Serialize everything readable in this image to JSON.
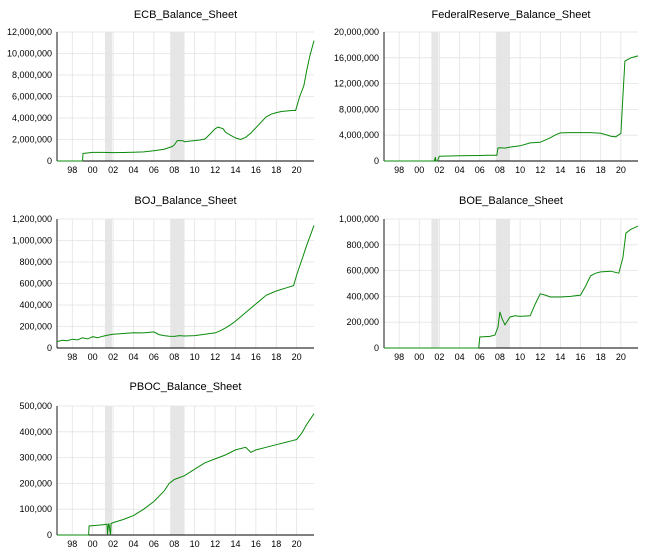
{
  "chart_data": [
    {
      "type": "line",
      "title": "ECB_Balance_Sheet",
      "xlim": [
        1996.5,
        2021.7
      ],
      "ylim": [
        0,
        12000000
      ],
      "yticks": [
        0,
        2000000,
        4000000,
        6000000,
        8000000,
        10000000,
        12000000
      ],
      "ytick_labels": [
        "0",
        "2,000,000",
        "4,000,000",
        "6,000,000",
        "8,000,000",
        "10,000,000",
        "12,000,000"
      ],
      "xticks": [
        1998,
        2000,
        2002,
        2004,
        2006,
        2008,
        2010,
        2012,
        2014,
        2016,
        2018,
        2020
      ],
      "xtick_labels": [
        "98",
        "00",
        "02",
        "04",
        "06",
        "08",
        "10",
        "12",
        "14",
        "16",
        "18",
        "20"
      ],
      "shaded_periods": [
        [
          2001.2,
          2001.9
        ],
        [
          2007.6,
          2009.0
        ]
      ],
      "series_color": "#0a8a0a",
      "grid": true,
      "x": [
        1996.5,
        1999.0,
        1999.05,
        2000,
        2001,
        2002,
        2003,
        2004,
        2005,
        2006,
        2007,
        2007.8,
        2008.0,
        2008.3,
        2008.8,
        2009,
        2009.5,
        2010,
        2010.5,
        2011,
        2011.5,
        2012.0,
        2012.3,
        2012.8,
        2013,
        2013.5,
        2014,
        2014.5,
        2015,
        2015.5,
        2016,
        2016.5,
        2017,
        2017.5,
        2018,
        2018.5,
        2019,
        2019.5,
        2019.9,
        2020.3,
        2020.7,
        2021,
        2021.3,
        2021.7
      ],
      "y": [
        0,
        0,
        700000,
        800000,
        800000,
        780000,
        790000,
        820000,
        850000,
        950000,
        1100000,
        1350000,
        1500000,
        1900000,
        1900000,
        1800000,
        1850000,
        1900000,
        1950000,
        2050000,
        2500000,
        3000000,
        3150000,
        3000000,
        2700000,
        2400000,
        2150000,
        2000000,
        2200000,
        2600000,
        3100000,
        3600000,
        4100000,
        4350000,
        4500000,
        4600000,
        4650000,
        4700000,
        4700000,
        6000000,
        7000000,
        8500000,
        9800000,
        11200000
      ]
    },
    {
      "type": "line",
      "title": "FederalReserve_Balance_Sheet",
      "xlim": [
        1996.5,
        2021.7
      ],
      "ylim": [
        0,
        20000000
      ],
      "yticks": [
        0,
        4000000,
        8000000,
        12000000,
        16000000,
        20000000
      ],
      "ytick_labels": [
        "0",
        "4,000,000",
        "8,000,000",
        "12,000,000",
        "16,000,000",
        "20,000,000"
      ],
      "xticks": [
        1998,
        2000,
        2002,
        2004,
        2006,
        2008,
        2010,
        2012,
        2014,
        2016,
        2018,
        2020
      ],
      "xtick_labels": [
        "98",
        "00",
        "02",
        "04",
        "06",
        "08",
        "10",
        "12",
        "14",
        "16",
        "18",
        "20"
      ],
      "shaded_periods": [
        [
          2001.2,
          2001.9
        ],
        [
          2007.6,
          2009.0
        ]
      ],
      "series_color": "#0a8a0a",
      "grid": true,
      "x": [
        1996.5,
        2001.5,
        2001.6,
        2001.65,
        2001.8,
        2002,
        2003,
        2004,
        2005,
        2006,
        2007,
        2007.7,
        2007.8,
        2008.0,
        2008.5,
        2009,
        2010,
        2011,
        2012,
        2013,
        2013.5,
        2014,
        2015,
        2016,
        2017,
        2018,
        2018.5,
        2019.0,
        2019.5,
        2020.0,
        2020.2,
        2020.4,
        2021.0,
        2021.7
      ],
      "y": [
        0,
        0,
        600000,
        0,
        0,
        750000,
        780000,
        800000,
        830000,
        860000,
        880000,
        900000,
        2000000,
        2050000,
        2000000,
        2150000,
        2350000,
        2800000,
        2900000,
        3600000,
        4050000,
        4350000,
        4400000,
        4400000,
        4400000,
        4300000,
        4100000,
        3850000,
        3750000,
        4300000,
        10000000,
        15500000,
        16000000,
        16300000
      ]
    },
    {
      "type": "line",
      "title": "BOJ_Balance_Sheet",
      "xlim": [
        1996.5,
        2021.7
      ],
      "ylim": [
        0,
        1200000
      ],
      "yticks": [
        0,
        200000,
        400000,
        600000,
        800000,
        1000000,
        1200000
      ],
      "ytick_labels": [
        "0",
        "200,000",
        "400,000",
        "600,000",
        "800,000",
        "1,000,000",
        "1,200,000"
      ],
      "xticks": [
        1998,
        2000,
        2002,
        2004,
        2006,
        2008,
        2010,
        2012,
        2014,
        2016,
        2018,
        2020
      ],
      "xtick_labels": [
        "98",
        "00",
        "02",
        "04",
        "06",
        "08",
        "10",
        "12",
        "14",
        "16",
        "18",
        "20"
      ],
      "shaded_periods": [
        [
          2001.2,
          2001.9
        ],
        [
          2007.6,
          2009.0
        ]
      ],
      "series_color": "#0a8a0a",
      "grid": true,
      "x": [
        1996.5,
        1997,
        1997.5,
        1998,
        1998.5,
        1999,
        1999.5,
        2000,
        2000.5,
        2001,
        2001.5,
        2002,
        2003,
        2004,
        2005,
        2006,
        2006.5,
        2007,
        2007.5,
        2008,
        2008.5,
        2009,
        2010,
        2011,
        2011.5,
        2012,
        2012.5,
        2013,
        2013.5,
        2014,
        2015,
        2016,
        2016.5,
        2017,
        2018,
        2019,
        2019.7,
        2020,
        2020.5,
        2021,
        2021.7
      ],
      "y": [
        60000,
        72000,
        68000,
        82000,
        75000,
        95000,
        85000,
        105000,
        96000,
        110000,
        120000,
        128000,
        135000,
        142000,
        140000,
        150000,
        125000,
        115000,
        110000,
        108000,
        115000,
        112000,
        115000,
        128000,
        135000,
        140000,
        160000,
        185000,
        215000,
        250000,
        330000,
        410000,
        450000,
        490000,
        530000,
        560000,
        580000,
        680000,
        820000,
        960000,
        1140000
      ]
    },
    {
      "type": "line",
      "title": "BOE_Balance_Sheet",
      "xlim": [
        1996.5,
        2021.7
      ],
      "ylim": [
        0,
        1000000
      ],
      "yticks": [
        0,
        200000,
        400000,
        600000,
        800000,
        1000000
      ],
      "ytick_labels": [
        "0",
        "200,000",
        "400,000",
        "600,000",
        "800,000",
        "1,000,000"
      ],
      "xticks": [
        1998,
        2000,
        2002,
        2004,
        2006,
        2008,
        2010,
        2012,
        2014,
        2016,
        2018,
        2020
      ],
      "xtick_labels": [
        "98",
        "00",
        "02",
        "04",
        "06",
        "08",
        "10",
        "12",
        "14",
        "16",
        "18",
        "20"
      ],
      "shaded_periods": [
        [
          2001.2,
          2001.9
        ],
        [
          2007.6,
          2009.0
        ]
      ],
      "series_color": "#0a8a0a",
      "grid": true,
      "x": [
        1996.5,
        2005.9,
        2006.0,
        2007.0,
        2007.5,
        2007.8,
        2008.0,
        2008.2,
        2008.5,
        2009,
        2009.5,
        2010,
        2011,
        2011.5,
        2012,
        2012.5,
        2013,
        2014,
        2015,
        2016,
        2016.5,
        2017,
        2017.5,
        2018,
        2019,
        2019.8,
        2020.2,
        2020.5,
        2021.0,
        2021.7
      ],
      "y": [
        0,
        0,
        85000,
        90000,
        100000,
        160000,
        280000,
        230000,
        180000,
        240000,
        250000,
        245000,
        250000,
        340000,
        420000,
        410000,
        395000,
        395000,
        400000,
        410000,
        480000,
        560000,
        580000,
        590000,
        595000,
        580000,
        700000,
        890000,
        920000,
        945000
      ]
    },
    {
      "type": "line",
      "title": "PBOC_Balance_Sheet",
      "xlim": [
        1996.5,
        2021.7
      ],
      "ylim": [
        0,
        500000
      ],
      "yticks": [
        0,
        100000,
        200000,
        300000,
        400000,
        500000
      ],
      "ytick_labels": [
        "0",
        "100,000",
        "200,000",
        "300,000",
        "400,000",
        "500,000"
      ],
      "xticks": [
        1998,
        2000,
        2002,
        2004,
        2006,
        2008,
        2010,
        2012,
        2014,
        2016,
        2018,
        2020
      ],
      "xtick_labels": [
        "98",
        "00",
        "02",
        "04",
        "06",
        "08",
        "10",
        "12",
        "14",
        "16",
        "18",
        "20"
      ],
      "shaded_periods": [
        [
          2001.2,
          2001.9
        ],
        [
          2007.6,
          2009.0
        ]
      ],
      "series_color": "#0a8a0a",
      "grid": true,
      "x": [
        1996.5,
        1999.6,
        1999.65,
        2000.5,
        2001.0,
        2001.4,
        2001.45,
        2001.55,
        2001.6,
        2001.75,
        2001.8,
        2001.9,
        2002,
        2003,
        2004,
        2005,
        2006,
        2007,
        2007.5,
        2008,
        2009,
        2010,
        2011,
        2012,
        2013,
        2014,
        2015,
        2015.5,
        2016,
        2017,
        2018,
        2019,
        2019.5,
        2020,
        2020.5,
        2021,
        2021.7
      ],
      "y": [
        0,
        0,
        35000,
        38000,
        40000,
        42000,
        0,
        42000,
        43000,
        0,
        45000,
        46000,
        48000,
        60000,
        75000,
        100000,
        130000,
        170000,
        200000,
        215000,
        230000,
        255000,
        280000,
        295000,
        310000,
        330000,
        340000,
        320000,
        330000,
        340000,
        350000,
        360000,
        365000,
        370000,
        395000,
        430000,
        470000
      ]
    }
  ]
}
